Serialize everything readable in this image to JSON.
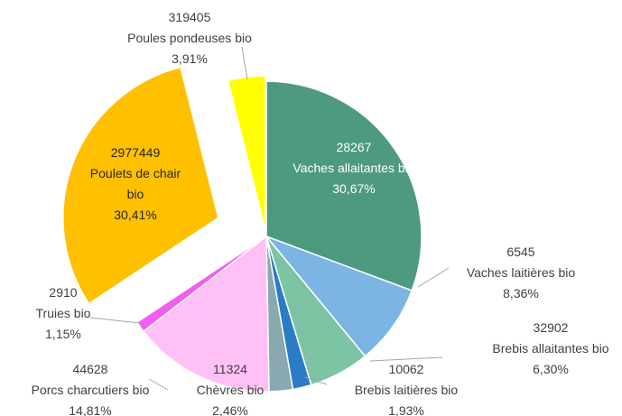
{
  "chart_data": {
    "type": "pie",
    "categories": [
      "Vaches allaitantes bio",
      "Vaches laitières bio",
      "Brebis allaitantes bio",
      "Brebis laitières bio",
      "Chèvres bio",
      "Porcs charcutiers bio",
      "Truies bio",
      "Poulets de chair bio",
      "Poules pondeuses bio"
    ],
    "values": [
      30.67,
      8.36,
      6.3,
      1.93,
      2.46,
      14.81,
      1.15,
      30.41,
      3.91
    ],
    "value_labels": [
      "30,67%",
      "8,36%",
      "6,30%",
      "1,93%",
      "2,46%",
      "14,81%",
      "1,15%",
      "30,41%",
      "3,91%"
    ],
    "counts": [
      28267,
      6545,
      32902,
      10062,
      11324,
      44628,
      2910,
      2977449,
      319405
    ],
    "colors": [
      "#4e9a7f",
      "#7cb5e4",
      "#7cc4a4",
      "#2a7cc4",
      "#8aa8b0",
      "#ffc0f5",
      "#f25ef0",
      "#ffc000",
      "#ffff00"
    ]
  }
}
